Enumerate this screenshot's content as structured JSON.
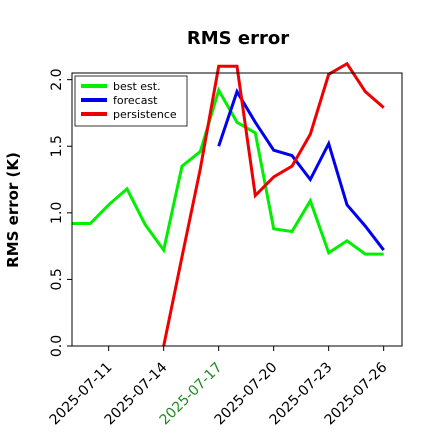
{
  "chart_data": {
    "type": "line",
    "title": "RMS error",
    "ylabel": "RMS error (K)",
    "xlabel": "",
    "ylim": [
      0,
      2.05
    ],
    "yticks": [
      "0.0",
      "0.5",
      "1.0",
      "1.5",
      "2.0"
    ],
    "ytick_values": [
      0,
      0.5,
      1.0,
      1.5,
      2.0
    ],
    "x_dates": [
      "2025-07-09",
      "2025-07-10",
      "2025-07-11",
      "2025-07-12",
      "2025-07-13",
      "2025-07-14",
      "2025-07-15",
      "2025-07-16",
      "2025-07-17",
      "2025-07-18",
      "2025-07-19",
      "2025-07-20",
      "2025-07-21",
      "2025-07-22",
      "2025-07-23",
      "2025-07-24",
      "2025-07-25",
      "2025-07-26",
      "2025-07-27"
    ],
    "xtick_labels": [
      "2025-07-11",
      "2025-07-14",
      "2025-07-17",
      "2025-07-20",
      "2025-07-23",
      "2025-07-26"
    ],
    "xtick_colors": [
      "#000000",
      "#000000",
      "#228b22",
      "#000000",
      "#000000",
      "#000000"
    ],
    "legend_position": "top-left",
    "series": [
      {
        "name": "best est.",
        "color": "#00ee00",
        "dates": [
          "2025-07-09",
          "2025-07-10",
          "2025-07-11",
          "2025-07-12",
          "2025-07-13",
          "2025-07-14",
          "2025-07-15",
          "2025-07-16",
          "2025-07-17",
          "2025-07-18",
          "2025-07-19",
          "2025-07-20",
          "2025-07-21",
          "2025-07-22",
          "2025-07-23",
          "2025-07-24",
          "2025-07-25",
          "2025-07-26"
        ],
        "values": [
          0.92,
          0.92,
          1.06,
          1.18,
          0.91,
          0.72,
          1.35,
          1.46,
          1.92,
          1.68,
          1.6,
          0.88,
          0.86,
          1.09,
          0.7,
          0.79,
          0.69,
          0.69
        ]
      },
      {
        "name": "forecast",
        "color": "#0000ee",
        "dates": [
          "2025-07-17",
          "2025-07-18",
          "2025-07-19",
          "2025-07-20",
          "2025-07-21",
          "2025-07-22",
          "2025-07-23",
          "2025-07-24",
          "2025-07-25",
          "2025-07-26"
        ],
        "values": [
          1.5,
          1.91,
          1.68,
          1.47,
          1.43,
          1.25,
          1.52,
          1.06,
          0.9,
          0.72
        ]
      },
      {
        "name": "persistence",
        "color": "#ee0000",
        "dates": [
          "2025-07-14",
          "2025-07-15",
          "2025-07-16",
          "2025-07-17",
          "2025-07-18",
          "2025-07-19",
          "2025-07-20",
          "2025-07-21",
          "2025-07-22",
          "2025-07-23",
          "2025-07-24",
          "2025-07-25",
          "2025-07-26"
        ],
        "values": [
          0.0,
          0.67,
          1.33,
          2.1,
          2.1,
          1.13,
          1.27,
          1.35,
          1.59,
          2.04,
          2.12,
          1.91,
          1.79
        ]
      }
    ]
  }
}
